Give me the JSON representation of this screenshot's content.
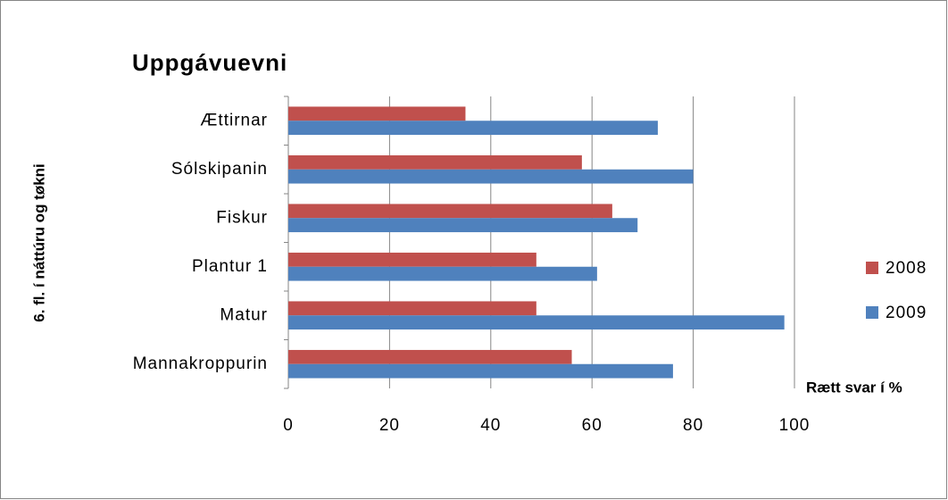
{
  "chart_data": {
    "type": "barh",
    "title": "Uppgávuevni",
    "y_label": "6. fl. í náttúru og tøkni",
    "x_label": "Rætt svar í %",
    "categories": [
      "Ættirnar",
      "Sólskipanin",
      "Fiskur",
      "Plantur 1",
      "Matur",
      "Mannakroppurin"
    ],
    "series": [
      {
        "name": "2008",
        "color": "#c0504d",
        "values": [
          35,
          58,
          64,
          49,
          49,
          56
        ]
      },
      {
        "name": "2009",
        "color": "#4f81bd",
        "values": [
          73,
          80,
          69,
          61,
          98,
          76
        ]
      }
    ],
    "xlim": [
      0,
      100
    ],
    "xticks": [
      0,
      20,
      40,
      60,
      80,
      100
    ],
    "grid": true,
    "legend": "right"
  }
}
